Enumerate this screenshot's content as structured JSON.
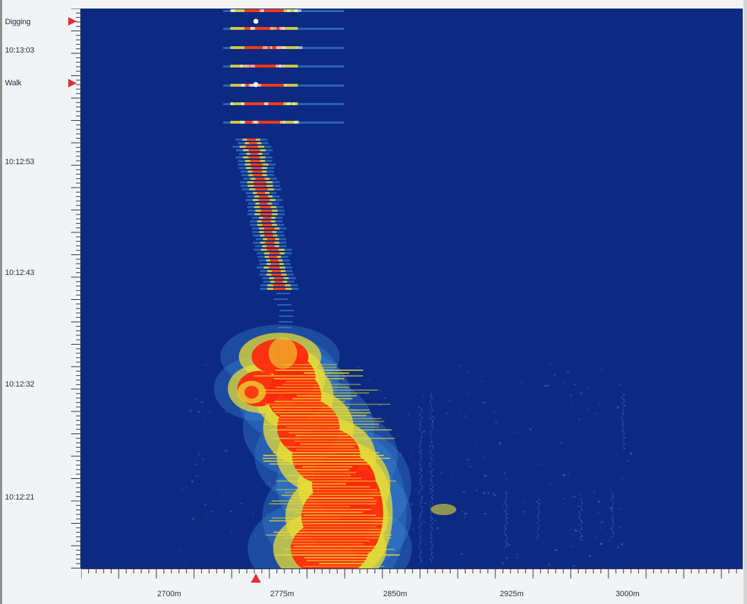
{
  "events": [
    {
      "label": "Digging",
      "position": "top"
    },
    {
      "label": "Walk",
      "position": "upper"
    }
  ],
  "time_axis": {
    "labels": [
      "10:13:03",
      "10:12:53",
      "10:12:43",
      "10:12:32",
      "10:12:21"
    ]
  },
  "distance_axis": {
    "labels": [
      "2700m",
      "2775m",
      "2850m",
      "2925m",
      "3000m"
    ]
  },
  "colors": {
    "background": "#0d2a82",
    "low": "#3d8ad8",
    "mid": "#e8dc33",
    "high": "#ff2a0e",
    "marker": "#e0303a"
  }
}
